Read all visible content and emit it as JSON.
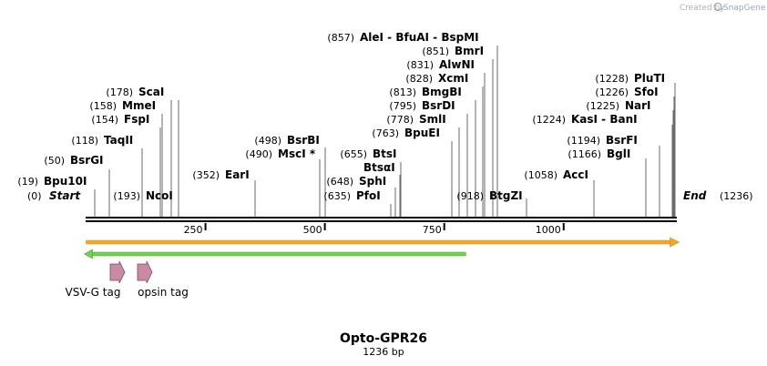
{
  "map": {
    "title": "Opto-GPR26",
    "subtitle": "1236 bp",
    "length": 1236,
    "start_label": "Start",
    "start_pos": "(0)",
    "end_label": "End",
    "end_pos": "(1236)",
    "credit": "Created by",
    "credit_brand": "SnapGene"
  },
  "ticks": [
    {
      "value": 250,
      "label": "250"
    },
    {
      "value": 500,
      "label": "500"
    },
    {
      "value": 750,
      "label": "750"
    },
    {
      "value": 1000,
      "label": "1000"
    }
  ],
  "sites": [
    {
      "id": "bpu10i",
      "pos": 19,
      "pos_label": "(19)",
      "name": "Bpu10I",
      "side": "L"
    },
    {
      "id": "bsrgi",
      "pos": 50,
      "pos_label": "(50)",
      "name": "BsrGI",
      "side": "L"
    },
    {
      "id": "taqii",
      "pos": 118,
      "pos_label": "(118)",
      "name": "TaqII",
      "side": "L"
    },
    {
      "id": "fspi",
      "pos": 154,
      "pos_label": "(154)",
      "name": "FspI",
      "side": "L"
    },
    {
      "id": "mmei",
      "pos": 158,
      "pos_label": "(158)",
      "name": "MmeI",
      "side": "L"
    },
    {
      "id": "scai",
      "pos": 178,
      "pos_label": "(178)",
      "name": "ScaI",
      "side": "L"
    },
    {
      "id": "ncoi",
      "pos": 193,
      "pos_label": "(193)",
      "name": "NcoI",
      "side": "L"
    },
    {
      "id": "eari",
      "pos": 352,
      "pos_label": "(352)",
      "name": "EarI",
      "side": "L"
    },
    {
      "id": "msci",
      "pos": 490,
      "pos_label": "(490)",
      "name": "MscI *",
      "side": "L"
    },
    {
      "id": "bsrbi",
      "pos": 498,
      "pos_label": "(498)",
      "name": "BsrBI",
      "side": "L"
    },
    {
      "id": "pfoi",
      "pos": 635,
      "pos_label": "(635)",
      "name": "PfoI",
      "side": "L"
    },
    {
      "id": "sphi",
      "pos": 648,
      "pos_label": "(648)",
      "name": "SphI",
      "side": "L"
    },
    {
      "id": "btsai",
      "pos": 655,
      "pos_label": "",
      "name": "BtsαI",
      "side": "L"
    },
    {
      "id": "btsi",
      "pos": 655,
      "pos_label": "(655)",
      "name": "BtsI",
      "side": "L"
    },
    {
      "id": "bpuei",
      "pos": 763,
      "pos_label": "(763)",
      "name": "BpuEI",
      "side": "L"
    },
    {
      "id": "smli",
      "pos": 778,
      "pos_label": "(778)",
      "name": "SmlI",
      "side": "L"
    },
    {
      "id": "bsrdi",
      "pos": 795,
      "pos_label": "(795)",
      "name": "BsrDI",
      "side": "L"
    },
    {
      "id": "bmgbi",
      "pos": 813,
      "pos_label": "(813)",
      "name": "BmgBI",
      "side": "L"
    },
    {
      "id": "xcmi",
      "pos": 828,
      "pos_label": "(828)",
      "name": "XcmI",
      "side": "L"
    },
    {
      "id": "alwni",
      "pos": 831,
      "pos_label": "(831)",
      "name": "AlwNI",
      "side": "L"
    },
    {
      "id": "bmri",
      "pos": 851,
      "pos_label": "(851)",
      "name": "BmrI",
      "side": "L"
    },
    {
      "id": "alei",
      "pos": 857,
      "pos_label": "(857)",
      "name": "AleI  - BfuAI  - BspMI",
      "side": "L"
    },
    {
      "id": "btgzi",
      "pos": 918,
      "pos_label": "(918)",
      "name": "BtgZI",
      "side": "R"
    },
    {
      "id": "acci",
      "pos": 1058,
      "pos_label": "(1058)",
      "name": "AccI",
      "side": "L"
    },
    {
      "id": "bgli",
      "pos": 1166,
      "pos_label": "(1166)",
      "name": "BglI",
      "side": "L"
    },
    {
      "id": "bsrfi",
      "pos": 1194,
      "pos_label": "(1194)",
      "name": "BsrFI",
      "side": "L"
    },
    {
      "id": "kasi",
      "pos": 1224,
      "pos_label": "(1224)",
      "name": "KasI  - BanI",
      "side": "L"
    },
    {
      "id": "nari",
      "pos": 1225,
      "pos_label": "(1225)",
      "name": "NarI",
      "side": "L"
    },
    {
      "id": "sfoi",
      "pos": 1226,
      "pos_label": "(1226)",
      "name": "SfoI",
      "side": "L"
    },
    {
      "id": "pluti",
      "pos": 1228,
      "pos_label": "(1228)",
      "name": "PluTI",
      "side": "L"
    }
  ],
  "features": {
    "orange_orf": {
      "name": "",
      "start": 0,
      "end": 1236,
      "direction": "forward",
      "color": "#f5a623",
      "outline": "#c48a2b"
    },
    "green_orf": {
      "name": "",
      "start": 0,
      "end": 795,
      "direction": "reverse",
      "color": "#6fd34b",
      "outline": "#4e9e3a"
    },
    "tags": [
      {
        "id": "vsvg",
        "name": "VSV-G tag",
        "start": 50,
        "end": 80,
        "color": "#c98aa6"
      },
      {
        "id": "opsin",
        "name": "opsin tag",
        "start": 105,
        "end": 145,
        "color": "#c98aa6"
      }
    ]
  }
}
